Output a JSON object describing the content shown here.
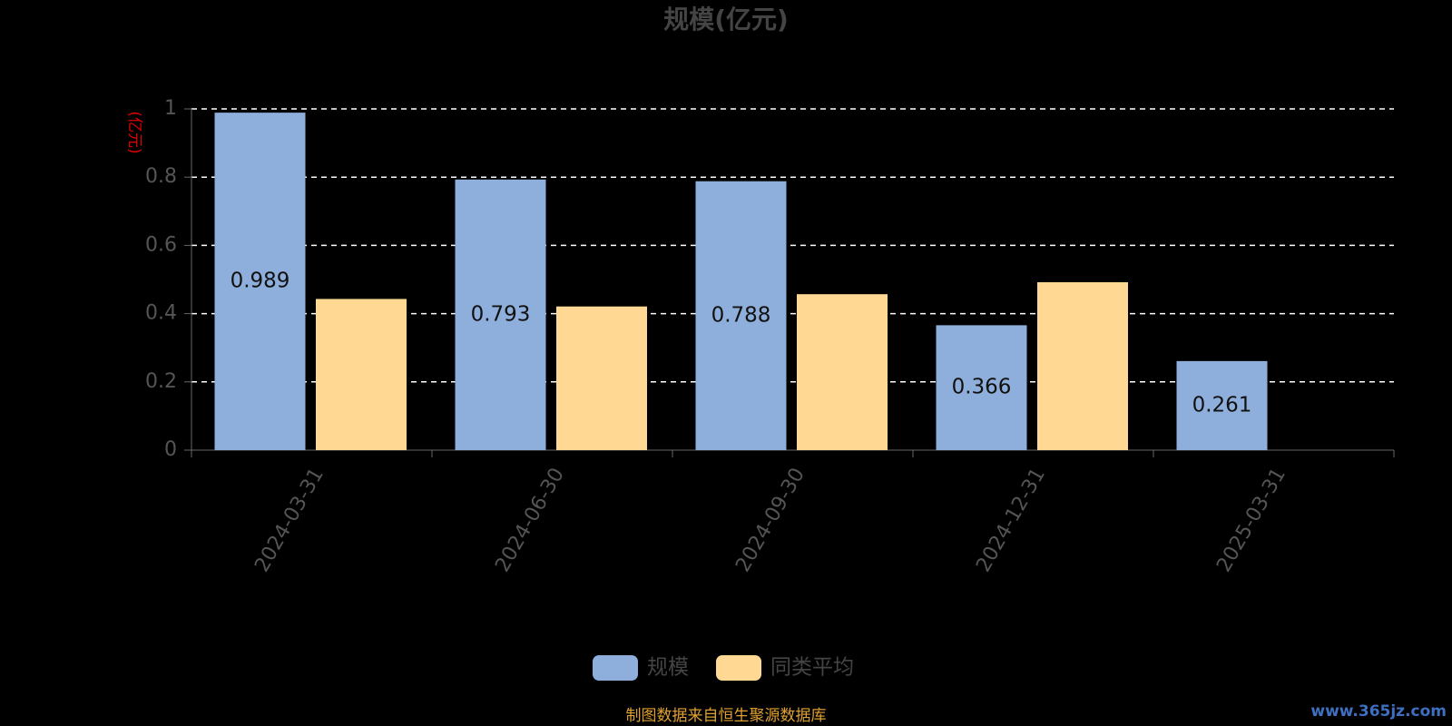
{
  "chart_data": {
    "type": "bar",
    "title": "规模(亿元)",
    "y_label": "(亿元)",
    "categories": [
      "2024-03-31",
      "2024-06-30",
      "2024-09-30",
      "2024-12-31",
      "2025-03-31"
    ],
    "series": [
      {
        "name": "规模",
        "color": "#8eaedb",
        "values": [
          0.989,
          0.793,
          0.788,
          0.366,
          0.261
        ],
        "show_labels": true
      },
      {
        "name": "同类平均",
        "color": "#ffd993",
        "values": [
          0.443,
          0.421,
          0.457,
          0.492,
          null
        ],
        "show_labels": false
      }
    ],
    "ylim": [
      0,
      1
    ],
    "yticks": [
      0,
      0.2,
      0.4,
      0.6,
      0.8,
      1
    ],
    "grid": true,
    "legend": "bottom",
    "footer": "制图数据来自恒生聚源数据库",
    "watermark": "www.365jz.com"
  }
}
